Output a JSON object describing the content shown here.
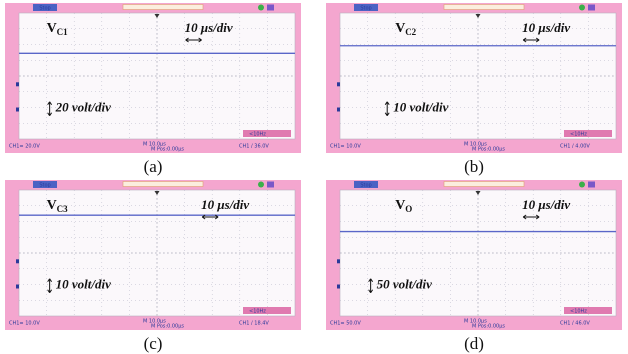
{
  "panels": [
    {
      "status": "Stop",
      "signal": "V",
      "subscript": "C1",
      "time_scale": "10 μs/div",
      "volt_scale": "20 volt/div",
      "ch_scale": "CH1= 20.0V",
      "timebase": "M 10.0μs",
      "position": "M Pos:0.00μs",
      "trigger": "CH1 / 36.0V",
      "frequency": "<10Hz",
      "caption": "(a)"
    },
    {
      "status": "Stop",
      "signal": "V",
      "subscript": "C2",
      "time_scale": "10 μs/div",
      "volt_scale": "10 volt/div",
      "ch_scale": "CH1= 10.0V",
      "timebase": "M 10.0μs",
      "position": "M Pos:0.00μs",
      "trigger": "CH1 / 4.00V",
      "frequency": "<10Hz",
      "caption": "(b)"
    },
    {
      "status": "Stop",
      "signal": "V",
      "subscript": "C3",
      "time_scale": "10 μs/div",
      "volt_scale": "10 volt/div",
      "ch_scale": "CH1= 10.0V",
      "timebase": "M 10.0μs",
      "position": "M Pos:0.00μs",
      "trigger": "CH1 / 18.4V",
      "frequency": "<10Hz",
      "caption": "(c)"
    },
    {
      "status": "Stop",
      "signal": "V",
      "subscript": "O",
      "time_scale": "10 μs/div",
      "volt_scale": "50 volt/div",
      "ch_scale": "CH1= 50.0V",
      "timebase": "M 10.0μs",
      "position": "M Pos:0.00μs",
      "trigger": "CH1 / 46.0V",
      "frequency": "<10Hz",
      "caption": "(d)"
    }
  ]
}
